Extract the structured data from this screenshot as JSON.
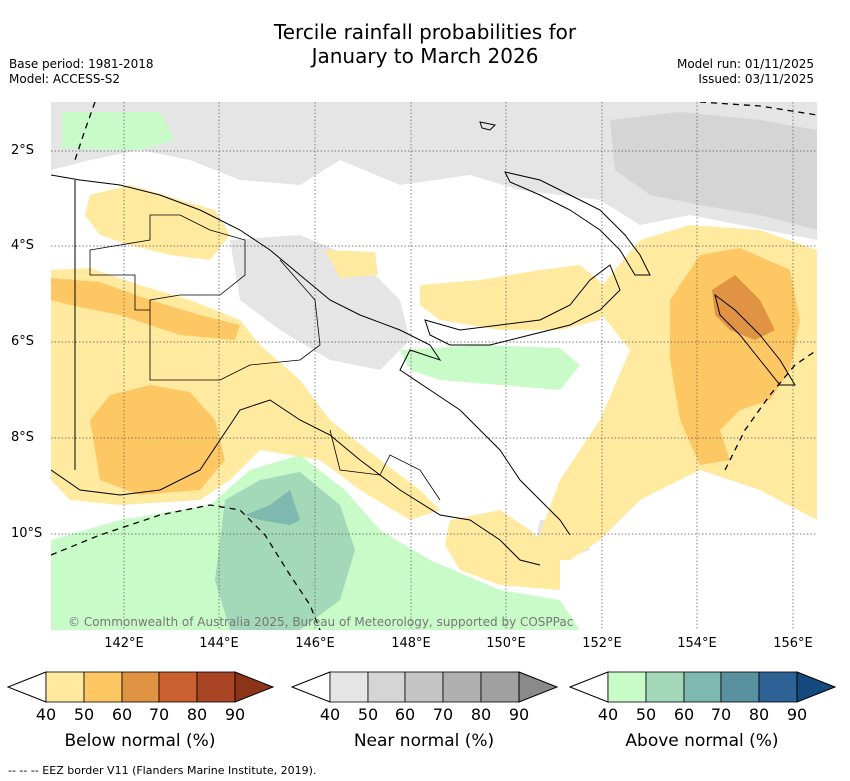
{
  "title_line1": "Tercile rainfall probabilities for",
  "title_line2": "January to March 2026",
  "meta_left": [
    "Base period: 1981-2018",
    "Model: ACCESS-S2"
  ],
  "meta_right": [
    "Model run: 01/11/2025",
    "Issued: 03/11/2025"
  ],
  "lat_labels": [
    "2°S",
    "4°S",
    "6°S",
    "8°S",
    "10°S"
  ],
  "lon_labels": [
    "142°E",
    "144°E",
    "146°E",
    "148°E",
    "150°E",
    "152°E",
    "154°E",
    "156°E"
  ],
  "copyright": "© Commonwealth of Australia 2025, Bureau of Meteorology, supported by COSPPac",
  "colorbars": [
    {
      "title": "Below normal (%)",
      "ticks": [
        "40",
        "50",
        "60",
        "70",
        "80",
        "90"
      ],
      "colors": [
        "#ffeaa0",
        "#fdc863",
        "#e09343",
        "#ca6030",
        "#a94424",
        "#8b3417"
      ]
    },
    {
      "title": "Near normal (%)",
      "ticks": [
        "40",
        "50",
        "60",
        "70",
        "80",
        "90"
      ],
      "colors": [
        "#e5e5e5",
        "#d5d5d5",
        "#c5c5c5",
        "#b0b0b0",
        "#a0a0a0",
        "#8a8a8a"
      ]
    },
    {
      "title": "Above normal (%)",
      "ticks": [
        "40",
        "50",
        "60",
        "70",
        "80",
        "90"
      ],
      "colors": [
        "#c8fbc8",
        "#a3d9b9",
        "#7fb8ae",
        "#5a91a0",
        "#2e6194",
        "#154a80"
      ]
    }
  ],
  "footer": "--  --  -- EEZ border V11 (Flanders Marine Institute, 2019).",
  "colors": {
    "below_40": "#ffeaa0",
    "below_50": "#fdc863",
    "below_60": "#e09343",
    "near_40": "#e5e5e5",
    "near_50": "#d5d5d5",
    "above_40": "#c8fbc8",
    "above_50": "#a3d9b9",
    "above_60": "#7fb8ae"
  }
}
